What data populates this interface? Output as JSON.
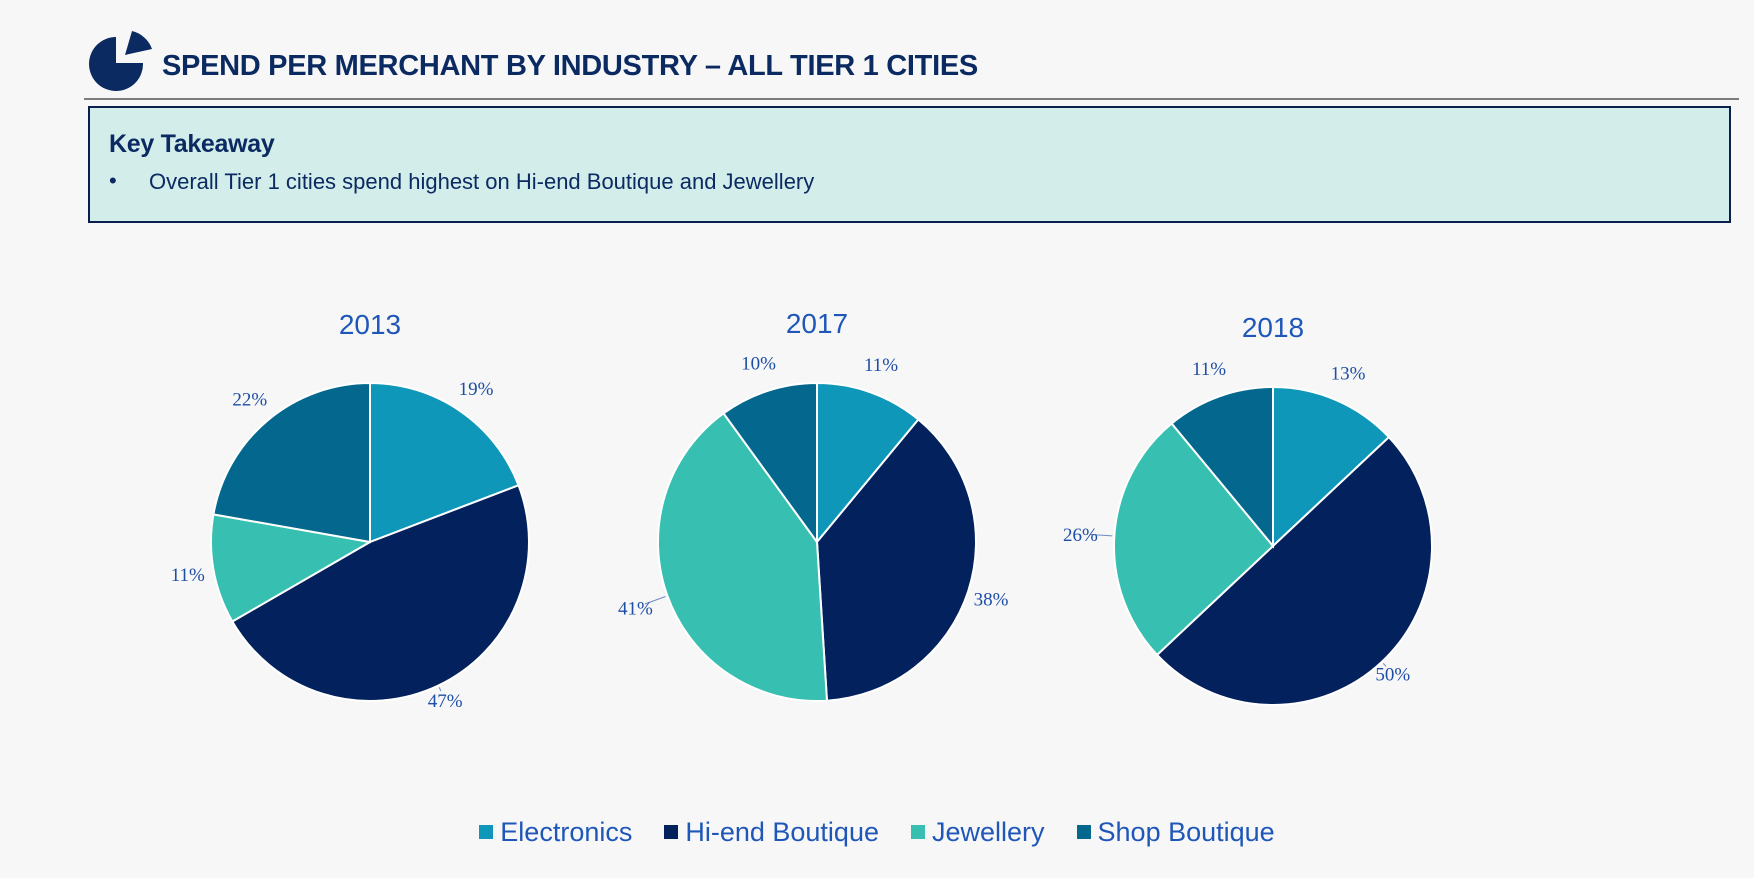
{
  "header": {
    "title": "SPEND PER MERCHANT BY INDUSTRY – ALL TIER 1 CITIES"
  },
  "takeaway": {
    "heading": "Key Takeaway",
    "bullet_symbol": "•",
    "bullet": "Overall Tier 1 cities spend highest on Hi-end Boutique and Jewellery"
  },
  "colors": {
    "Electronics": "#0e97b8",
    "Hi-end Boutique": "#03215d",
    "Jewellery": "#37bfb1",
    "Shop Boutique": "#04688e",
    "title_text": "#0b2a62",
    "chart_text": "#1f57b8"
  },
  "legend": {
    "items": [
      "Electronics",
      "Hi-end Boutique",
      "Jewellery",
      "Shop Boutique"
    ]
  },
  "chart_data": [
    {
      "type": "pie",
      "title": "2013",
      "categories": [
        "Electronics",
        "Hi-end Boutique",
        "Jewellery",
        "Shop Boutique"
      ],
      "values": [
        19,
        47,
        11,
        22
      ],
      "labels": [
        "19%",
        "47%",
        "11%",
        "22%"
      ]
    },
    {
      "type": "pie",
      "title": "2017",
      "categories": [
        "Electronics",
        "Hi-end Boutique",
        "Jewellery",
        "Shop Boutique"
      ],
      "values": [
        11,
        38,
        41,
        10
      ],
      "labels": [
        "11%",
        "38%",
        "41%",
        "10%"
      ]
    },
    {
      "type": "pie",
      "title": "2018",
      "categories": [
        "Electronics",
        "Hi-end Boutique",
        "Jewellery",
        "Shop Boutique"
      ],
      "values": [
        13,
        50,
        26,
        11
      ],
      "labels": [
        "13%",
        "50%",
        "26%",
        "11%"
      ]
    }
  ]
}
